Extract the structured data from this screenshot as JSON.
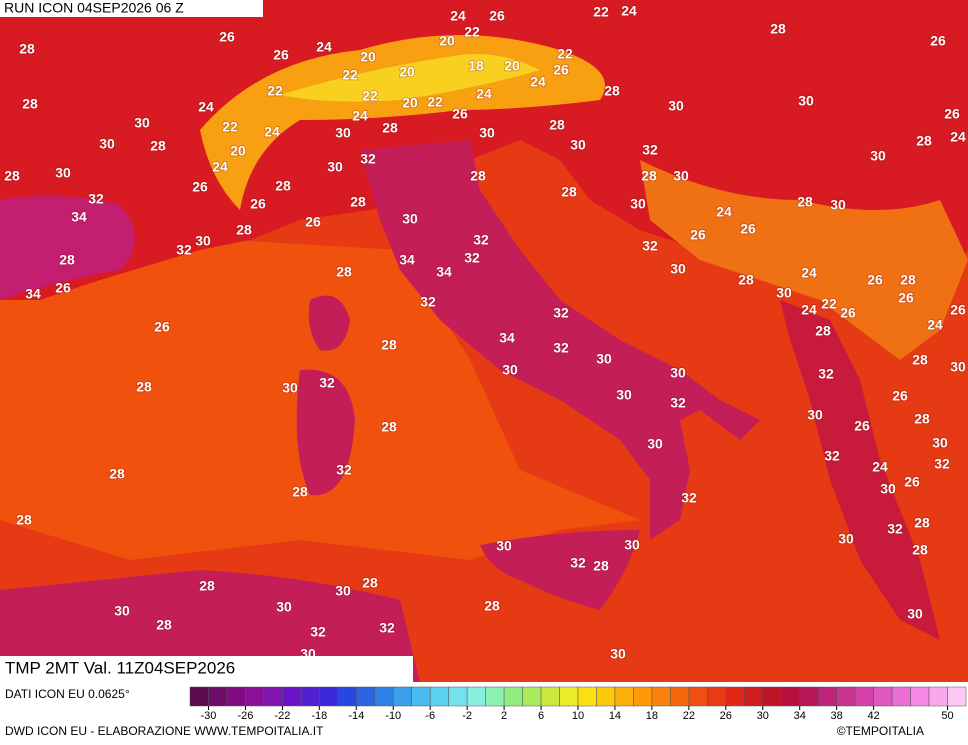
{
  "header": {
    "run": "RUN ICON 04SEP2026 06 Z",
    "field": "TMP 2MT Val. 11Z04SEP2026",
    "source": "DATI ICON EU 0.0625°",
    "footer": "DWD ICON EU - ELABORAZIONE WWW.TEMPOITALIA.IT",
    "brand": "©TEMPOITALIA"
  },
  "legend": {
    "ticks": [
      -30,
      -26,
      -22,
      -18,
      -14,
      -10,
      -6,
      -2,
      2,
      6,
      10,
      14,
      18,
      22,
      26,
      30,
      34,
      38,
      42,
      50
    ],
    "colors": [
      "#5a0a4e",
      "#6e0a6a",
      "#800a82",
      "#8c0f9a",
      "#8214b4",
      "#6a14c8",
      "#5020d2",
      "#3a2adc",
      "#2a46e0",
      "#2a64e2",
      "#2e80e6",
      "#3aa0ea",
      "#48bcee",
      "#5ad2f0",
      "#72e2ee",
      "#8aeee0",
      "#8cf0b0",
      "#90ec80",
      "#a8ea5a",
      "#cde83c",
      "#ecec28",
      "#fce014",
      "#fcc80a",
      "#fcb00a",
      "#fc9a0a",
      "#fa820c",
      "#f4680e",
      "#ee5012",
      "#e83a14",
      "#e02818",
      "#d01c1e",
      "#c01428",
      "#b8103c",
      "#b8185a",
      "#c02478",
      "#c83490",
      "#d444a8",
      "#e058c0",
      "#ec6ed4",
      "#f488e2",
      "#f8a8ec",
      "#fcc8f4"
    ]
  },
  "map_labels": [
    24,
    26,
    22,
    24,
    28,
    26,
    28,
    26,
    26,
    24,
    20,
    20,
    22,
    22,
    18,
    20,
    26,
    20,
    22,
    24,
    22,
    22,
    20,
    22,
    24,
    28,
    30,
    30,
    28,
    24,
    26,
    30,
    22,
    24,
    30,
    28,
    24,
    30,
    28,
    26,
    28,
    24,
    30,
    28,
    20,
    30,
    32,
    30,
    24,
    30,
    32,
    28,
    30,
    28,
    28,
    30,
    26,
    28,
    28,
    32,
    26,
    28,
    30,
    28,
    30,
    24,
    34,
    26,
    30,
    26,
    30,
    28,
    26,
    32,
    32,
    32,
    32,
    28,
    34,
    34,
    30,
    24,
    26,
    28,
    28,
    28,
    26,
    34,
    30,
    26,
    24,
    22,
    26,
    26,
    32,
    24,
    26,
    28,
    32,
    34,
    28,
    32,
    30,
    28,
    28,
    30,
    32,
    30,
    30,
    32,
    30,
    26,
    30,
    32,
    30,
    28,
    28,
    26,
    30,
    30,
    32,
    28,
    32,
    32,
    24,
    26,
    30,
    28,
    32,
    28,
    32,
    28,
    30,
    30,
    30,
    28,
    32,
    28,
    28,
    30,
    28,
    30,
    30,
    28,
    30,
    28,
    32,
    32,
    30,
    30
  ]
}
